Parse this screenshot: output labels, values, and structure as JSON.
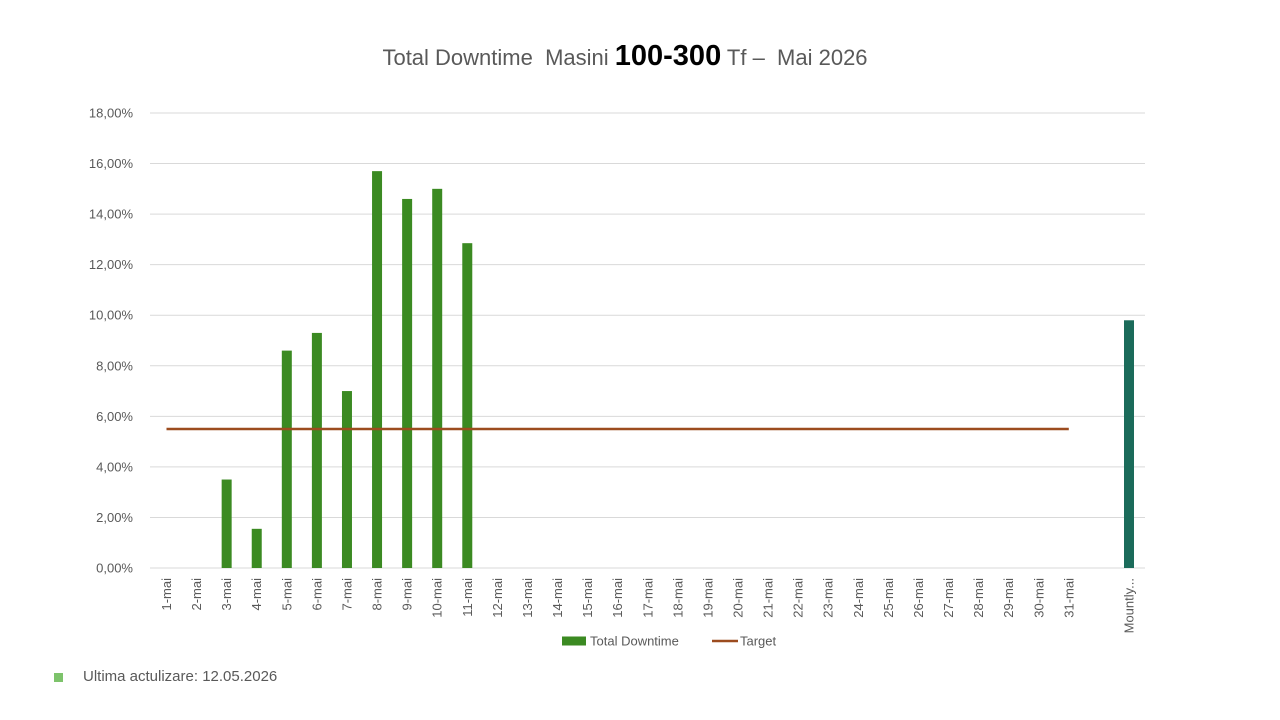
{
  "title": {
    "part1": "Total Downtime  Masini ",
    "part2": "100-300",
    "part3": " Tf –  Mai 2026"
  },
  "footnote": {
    "text": "Ultima actulizare: 12.05.2026",
    "bullet_color": "#7dc36b"
  },
  "colors": {
    "bar": "#3b8a22",
    "monthly_bar": "#1b6b5a",
    "target": "#9c4c1f",
    "grid": "#d9d9d9",
    "axis_text": "#595959"
  },
  "chart_data": {
    "type": "bar",
    "title": "Total Downtime  Masini 100-300 Tf –  Mai 2026",
    "categories": [
      "1-mai",
      "2-mai",
      "3-mai",
      "4-mai",
      "5-mai",
      "6-mai",
      "7-mai",
      "8-mai",
      "9-mai",
      "10-mai",
      "11-mai",
      "12-mai",
      "13-mai",
      "14-mai",
      "15-mai",
      "16-mai",
      "17-mai",
      "18-mai",
      "19-mai",
      "20-mai",
      "21-mai",
      "22-mai",
      "23-mai",
      "24-mai",
      "25-mai",
      "26-mai",
      "27-mai",
      "28-mai",
      "29-mai",
      "30-mai",
      "31-mai",
      "",
      "Mountly..."
    ],
    "series": [
      {
        "name": "Total Downtime",
        "type": "bar",
        "values": [
          0,
          0,
          3.5,
          1.55,
          8.6,
          9.3,
          7.0,
          15.7,
          14.6,
          15.0,
          12.85,
          0,
          0,
          0,
          0,
          0,
          0,
          0,
          0,
          0,
          0,
          0,
          0,
          0,
          0,
          0,
          0,
          0,
          0,
          0,
          0,
          null,
          9.8
        ]
      },
      {
        "name": "Target",
        "type": "line",
        "values": [
          5.5,
          5.5,
          5.5,
          5.5,
          5.5,
          5.5,
          5.5,
          5.5,
          5.5,
          5.5,
          5.5,
          5.5,
          5.5,
          5.5,
          5.5,
          5.5,
          5.5,
          5.5,
          5.5,
          5.5,
          5.5,
          5.5,
          5.5,
          5.5,
          5.5,
          5.5,
          5.5,
          5.5,
          5.5,
          5.5,
          5.5,
          null,
          null
        ]
      }
    ],
    "ylim": [
      0,
      18
    ],
    "yticks": [
      "0,00%",
      "2,00%",
      "4,00%",
      "6,00%",
      "8,00%",
      "10,00%",
      "12,00%",
      "14,00%",
      "16,00%",
      "18,00%"
    ],
    "ytick_values": [
      0,
      2,
      4,
      6,
      8,
      10,
      12,
      14,
      16,
      18
    ],
    "grid": true,
    "legend_position": "bottom"
  }
}
